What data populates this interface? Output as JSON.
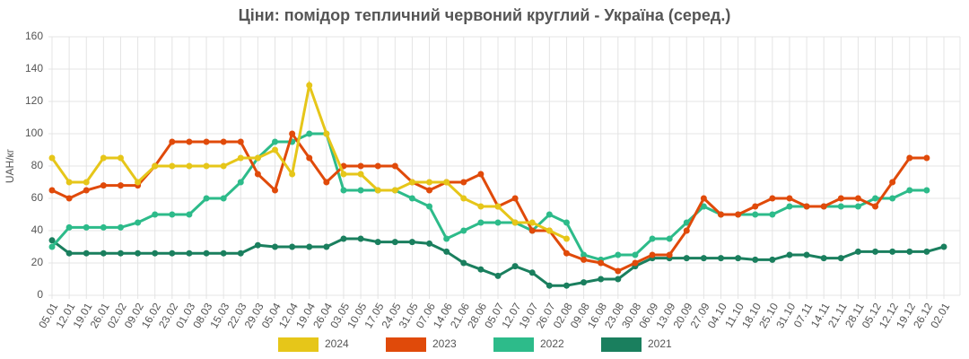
{
  "chart_data": {
    "type": "line",
    "title": "Ціни: помідор тепличний червоний круглий - Україна (серед.)",
    "y_label": "UAH/кг",
    "categories": [
      "05.01",
      "12.01",
      "19.01",
      "26.01",
      "02.02",
      "09.02",
      "16.02",
      "23.02",
      "01.03",
      "08.03",
      "15.03",
      "22.03",
      "29.03",
      "05.04",
      "12.04",
      "19.04",
      "26.04",
      "03.05",
      "10.05",
      "17.05",
      "24.05",
      "31.05",
      "07.06",
      "14.06",
      "21.06",
      "28.06",
      "05.07",
      "12.07",
      "19.07",
      "26.07",
      "02.08",
      "09.08",
      "16.08",
      "23.08",
      "30.08",
      "06.09",
      "13.09",
      "20.09",
      "27.09",
      "04.10",
      "11.10",
      "18.10",
      "25.10",
      "31.10",
      "07.11",
      "14.11",
      "21.11",
      "28.11",
      "05.12",
      "12.12",
      "19.12",
      "26.12",
      "02.01"
    ],
    "series": [
      {
        "name": "2024",
        "color": "#e6c619",
        "values": [
          85,
          70,
          70,
          85,
          85,
          70,
          80,
          80,
          80,
          80,
          80,
          85,
          85,
          90,
          75,
          130,
          100,
          75,
          75,
          65,
          65,
          70,
          70,
          70,
          60,
          55,
          55,
          45,
          45,
          40,
          35,
          null,
          null,
          null,
          null,
          null,
          null,
          null,
          null,
          null,
          null,
          null,
          null,
          null,
          null,
          null,
          null,
          null,
          null,
          null,
          null,
          null,
          null
        ]
      },
      {
        "name": "2023",
        "color": "#e04a0a",
        "values": [
          65,
          60,
          65,
          68,
          68,
          68,
          80,
          95,
          95,
          95,
          95,
          95,
          75,
          65,
          100,
          85,
          70,
          80,
          80,
          80,
          80,
          70,
          65,
          70,
          70,
          75,
          55,
          60,
          40,
          40,
          26,
          22,
          20,
          15,
          20,
          25,
          25,
          40,
          60,
          50,
          50,
          55,
          60,
          60,
          55,
          55,
          60,
          60,
          55,
          70,
          85,
          85,
          null
        ]
      },
      {
        "name": "2022",
        "color": "#2dbb8a",
        "values": [
          30,
          42,
          42,
          42,
          42,
          45,
          50,
          50,
          50,
          60,
          60,
          70,
          85,
          95,
          95,
          100,
          100,
          65,
          65,
          65,
          65,
          60,
          55,
          35,
          40,
          45,
          45,
          45,
          40,
          50,
          45,
          25,
          22,
          25,
          25,
          35,
          35,
          45,
          55,
          50,
          50,
          50,
          50,
          55,
          55,
          55,
          55,
          55,
          60,
          60,
          65,
          65,
          null
        ]
      },
      {
        "name": "2021",
        "color": "#1a7f5e",
        "values": [
          34,
          26,
          26,
          26,
          26,
          26,
          26,
          26,
          26,
          26,
          26,
          26,
          31,
          30,
          30,
          30,
          30,
          35,
          35,
          33,
          33,
          33,
          32,
          27,
          20,
          16,
          12,
          18,
          14,
          6,
          6,
          8,
          10,
          10,
          18,
          23,
          23,
          23,
          23,
          23,
          23,
          22,
          22,
          25,
          25,
          23,
          23,
          27,
          27,
          27,
          27,
          27,
          30
        ]
      }
    ],
    "ylim": [
      0,
      160
    ],
    "yticks": [
      0,
      20,
      40,
      60,
      80,
      100,
      120,
      140,
      160
    ],
    "grid": true,
    "legend": "bottom"
  }
}
